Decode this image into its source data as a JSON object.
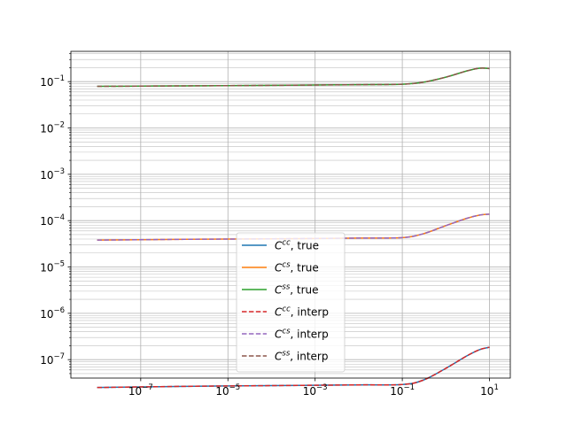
{
  "chart_data": {
    "type": "line",
    "title": "",
    "xlabel": "",
    "ylabel": "",
    "xscale": "log",
    "yscale": "log",
    "xlim": [
      2.5e-09,
      30
    ],
    "ylim": [
      4e-08,
      0.45
    ],
    "grid": "major and minor, both axes",
    "legend_placement": "lower center",
    "x_ticks": [
      {
        "value": 1e-07,
        "base": "10",
        "exp": "−7"
      },
      {
        "value": 1e-05,
        "base": "10",
        "exp": "−5"
      },
      {
        "value": 0.001,
        "base": "10",
        "exp": "−3"
      },
      {
        "value": 0.1,
        "base": "10",
        "exp": "−1"
      },
      {
        "value": 10,
        "base": "10",
        "exp": "1"
      }
    ],
    "y_ticks": [
      {
        "value": 1e-07,
        "base": "10",
        "exp": "−7"
      },
      {
        "value": 1e-06,
        "base": "10",
        "exp": "−6"
      },
      {
        "value": 1e-05,
        "base": "10",
        "exp": "−5"
      },
      {
        "value": 0.0001,
        "base": "10",
        "exp": "−4"
      },
      {
        "value": 0.001,
        "base": "10",
        "exp": "−3"
      },
      {
        "value": 0.01,
        "base": "10",
        "exp": "−2"
      },
      {
        "value": 0.1,
        "base": "10",
        "exp": "−1"
      }
    ],
    "series": [
      {
        "name_sym": "C",
        "name_sup": "cc",
        "name_rest": ", true",
        "color": "#1f77b4",
        "dashed": false,
        "x": [
          1e-08,
          1e-06,
          0.0001,
          0.01,
          0.1,
          0.3,
          1,
          3,
          6,
          10
        ],
        "y": [
          2.5e-08,
          2.65e-08,
          2.75e-08,
          2.85e-08,
          2.9e-08,
          3.6e-08,
          6.5e-08,
          1.2e-07,
          1.65e-07,
          1.85e-07
        ]
      },
      {
        "name_sym": "C",
        "name_sup": "cs",
        "name_rest": ", true",
        "color": "#ff7f0e",
        "dashed": false,
        "x": [
          1e-08,
          1e-06,
          0.0001,
          0.01,
          0.1,
          0.3,
          1,
          3,
          6,
          10
        ],
        "y": [
          3.8e-05,
          3.95e-05,
          4.05e-05,
          4.2e-05,
          4.3e-05,
          5.2e-05,
          7.8e-05,
          0.000112,
          0.000132,
          0.000138
        ]
      },
      {
        "name_sym": "C",
        "name_sup": "ss",
        "name_rest": ", true",
        "color": "#2ca02c",
        "dashed": false,
        "x": [
          1e-08,
          1e-06,
          0.0001,
          0.01,
          0.1,
          0.3,
          1,
          3,
          6,
          10
        ],
        "y": [
          0.079,
          0.081,
          0.083,
          0.086,
          0.088,
          0.097,
          0.125,
          0.17,
          0.195,
          0.192
        ]
      },
      {
        "name_sym": "C",
        "name_sup": "cc",
        "name_rest": ", interp",
        "color": "#d62728",
        "dashed": true,
        "x": [
          1e-08,
          1e-06,
          0.0001,
          0.01,
          0.1,
          0.3,
          1,
          3,
          6,
          10
        ],
        "y": [
          2.5e-08,
          2.65e-08,
          2.75e-08,
          2.85e-08,
          2.9e-08,
          3.6e-08,
          6.5e-08,
          1.2e-07,
          1.65e-07,
          1.85e-07
        ]
      },
      {
        "name_sym": "C",
        "name_sup": "cs",
        "name_rest": ", interp",
        "color": "#9467bd",
        "dashed": true,
        "x": [
          1e-08,
          1e-06,
          0.0001,
          0.01,
          0.1,
          0.3,
          1,
          3,
          6,
          10
        ],
        "y": [
          3.8e-05,
          3.95e-05,
          4.05e-05,
          4.2e-05,
          4.3e-05,
          5.2e-05,
          7.8e-05,
          0.000112,
          0.000132,
          0.000138
        ]
      },
      {
        "name_sym": "C",
        "name_sup": "ss",
        "name_rest": ", interp",
        "color": "#8c564b",
        "dashed": true,
        "x": [
          1e-08,
          1e-06,
          0.0001,
          0.01,
          0.1,
          0.3,
          1,
          3,
          6,
          10
        ],
        "y": [
          0.079,
          0.081,
          0.083,
          0.086,
          0.088,
          0.097,
          0.125,
          0.17,
          0.195,
          0.192
        ]
      }
    ]
  }
}
